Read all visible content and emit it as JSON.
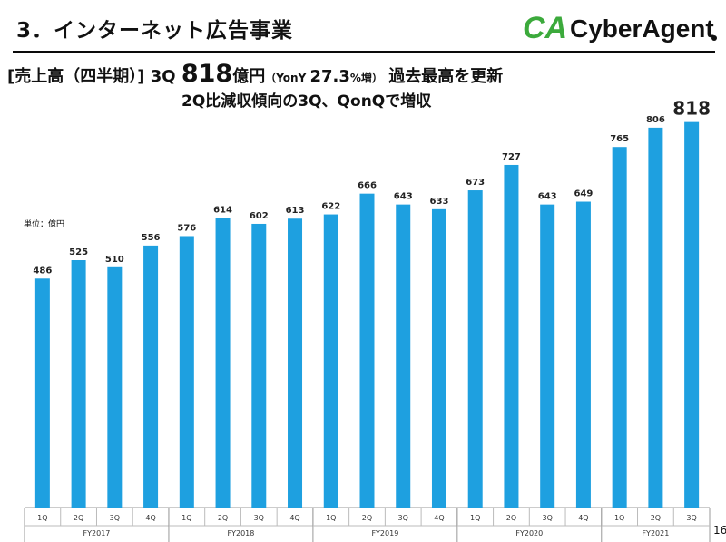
{
  "header": {
    "title": "3．インターネット広告事業",
    "logo_text": "CyberAgent"
  },
  "subtitle": {
    "bracket": "[売上高（四半期）]",
    "q": "3Q",
    "amount": "818",
    "unit": "億円",
    "yoy_open": "（YonY ",
    "yoy_value": "27.3",
    "yoy_close": "%増）",
    "tail": "過去最高を更新",
    "line2": "2Q比減収傾向の3Q、QonQで増収"
  },
  "unit_label": "単位：億円",
  "page_number": "16",
  "colors": {
    "bar": "#1ea0e0",
    "brand_green": "#3caa3c"
  },
  "chart_data": {
    "type": "bar",
    "categories": [
      "1Q",
      "2Q",
      "3Q",
      "4Q",
      "1Q",
      "2Q",
      "3Q",
      "4Q",
      "1Q",
      "2Q",
      "3Q",
      "4Q",
      "1Q",
      "2Q",
      "3Q",
      "4Q",
      "1Q",
      "2Q",
      "3Q"
    ],
    "groups": [
      {
        "label": "FY2017",
        "count": 4
      },
      {
        "label": "FY2018",
        "count": 4
      },
      {
        "label": "FY2019",
        "count": 4
      },
      {
        "label": "FY2020",
        "count": 4
      },
      {
        "label": "FY2021",
        "count": 3
      }
    ],
    "values": [
      486,
      525,
      510,
      556,
      576,
      614,
      602,
      613,
      622,
      666,
      643,
      633,
      673,
      727,
      643,
      649,
      765,
      806,
      818
    ],
    "ylim": [
      0,
      850
    ],
    "highlight_last": true,
    "grid": false,
    "legend": "none"
  }
}
